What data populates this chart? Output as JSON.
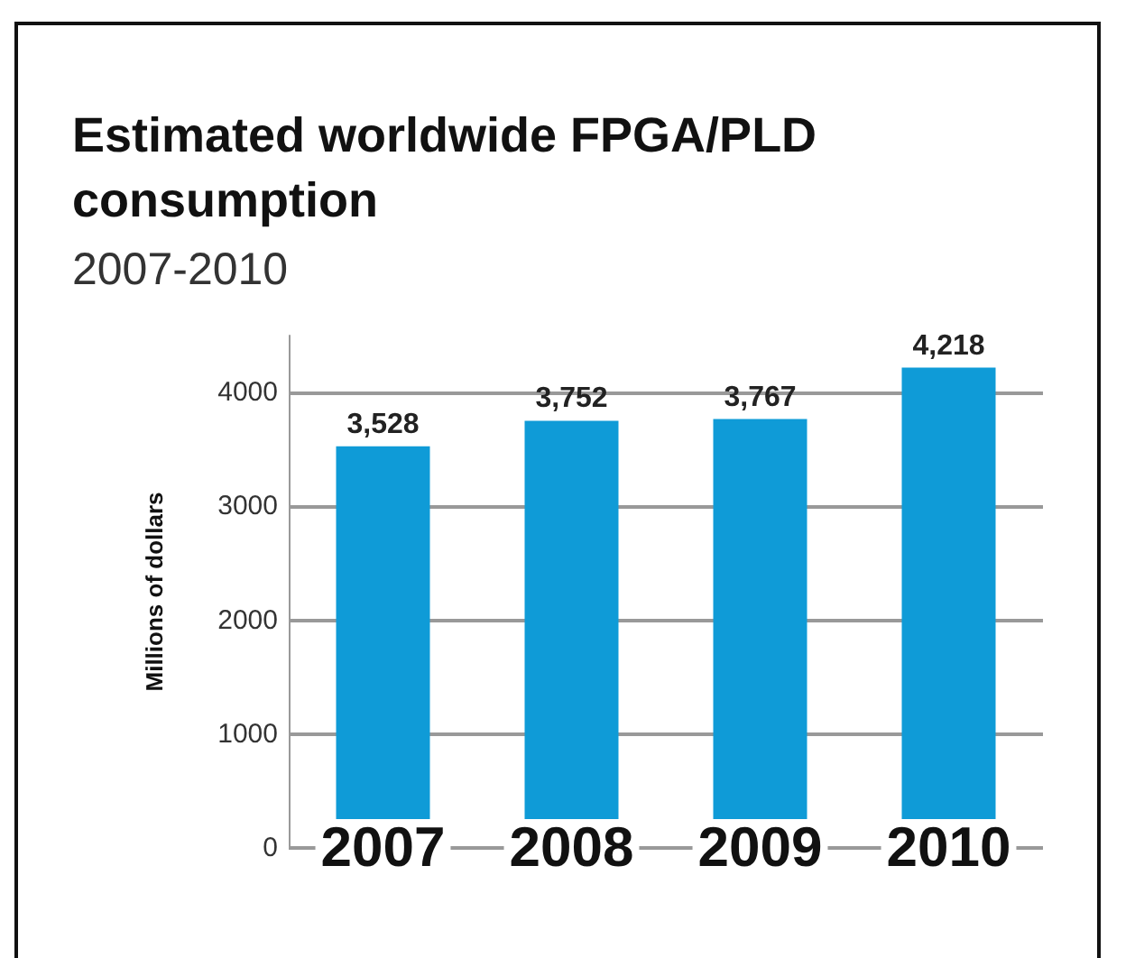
{
  "chart_data": {
    "type": "bar",
    "title": "Estimated worldwide FPGA/PLD consumption",
    "subtitle": "2007-2010",
    "ylabel": "Millions of dollars",
    "categories": [
      "2007",
      "2008",
      "2009",
      "2010"
    ],
    "values": [
      3528,
      3752,
      3767,
      4218
    ],
    "value_labels": [
      "3,528",
      "3,752",
      "3,767",
      "4,218"
    ],
    "color": "#0f9bd7",
    "ylim": [
      0,
      4500
    ],
    "yticks": [
      0,
      1000,
      2000,
      3000,
      4000
    ],
    "grid": "y"
  }
}
